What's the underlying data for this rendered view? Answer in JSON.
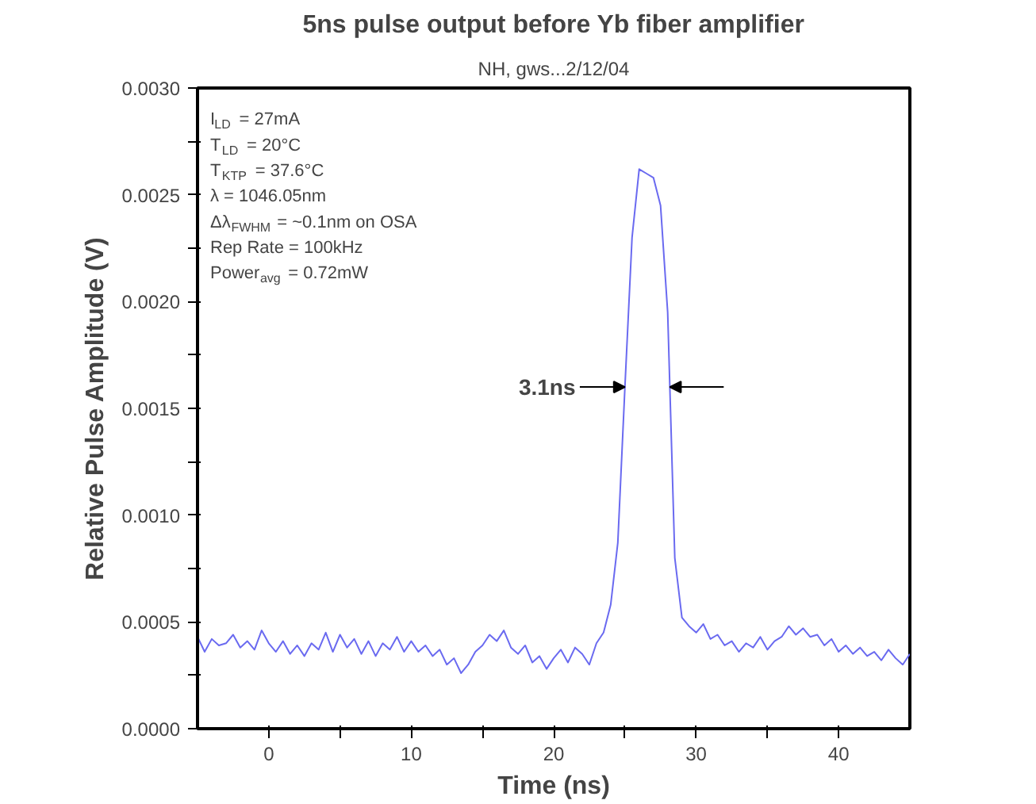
{
  "chart_data": {
    "type": "line",
    "title": "5ns pulse output before Yb fiber amplifier",
    "subtitle": "NH, gws...2/12/04",
    "xlabel": "Time (ns)",
    "ylabel": "Relative Pulse Amplitude (V)",
    "x": [
      -5,
      -4.5,
      -4,
      -3.5,
      -3,
      -2.5,
      -2,
      -1.5,
      -1,
      -0.5,
      0,
      0.5,
      1,
      1.5,
      2,
      2.5,
      3,
      3.5,
      4,
      4.5,
      5,
      5.5,
      6,
      6.5,
      7,
      7.5,
      8,
      8.5,
      9,
      9.5,
      10,
      10.5,
      11,
      11.5,
      12,
      12.5,
      13,
      13.5,
      14,
      14.5,
      15,
      15.5,
      16,
      16.5,
      17,
      17.5,
      18,
      18.5,
      19,
      19.5,
      20,
      20.5,
      21,
      21.5,
      22,
      22.5,
      23,
      23.5,
      24,
      24.5,
      25,
      25.5,
      26,
      26.5,
      27,
      27.5,
      28,
      28.5,
      29,
      29.5,
      30,
      30.5,
      31,
      31.5,
      32,
      32.5,
      33,
      33.5,
      34,
      34.5,
      35,
      35.5,
      36,
      36.5,
      37,
      37.5,
      38,
      38.5,
      39,
      39.5,
      40,
      40.5,
      41,
      41.5,
      42,
      42.5,
      43,
      43.5,
      44,
      44.5,
      45
    ],
    "series": [
      {
        "color": "#6a6af0",
        "values": [
          0.00043,
          0.00036,
          0.00042,
          0.00039,
          0.0004,
          0.00044,
          0.00038,
          0.00041,
          0.00037,
          0.00046,
          0.0004,
          0.00036,
          0.00041,
          0.00035,
          0.00039,
          0.00034,
          0.0004,
          0.00037,
          0.00045,
          0.00036,
          0.00044,
          0.00038,
          0.00042,
          0.00035,
          0.00041,
          0.00034,
          0.0004,
          0.00037,
          0.00043,
          0.00036,
          0.00041,
          0.00036,
          0.00039,
          0.00034,
          0.00037,
          0.0003,
          0.00033,
          0.00026,
          0.0003,
          0.00036,
          0.00039,
          0.00044,
          0.00041,
          0.00046,
          0.00038,
          0.00035,
          0.00039,
          0.00031,
          0.00034,
          0.00028,
          0.00033,
          0.00037,
          0.00031,
          0.00038,
          0.00035,
          0.0003,
          0.0004,
          0.00045,
          0.00058,
          0.00087,
          0.0016,
          0.0023,
          0.00262,
          0.0026,
          0.00258,
          0.00245,
          0.00195,
          0.0008,
          0.00052,
          0.00048,
          0.00045,
          0.00049,
          0.00042,
          0.00044,
          0.00039,
          0.00041,
          0.00036,
          0.0004,
          0.00038,
          0.00043,
          0.00037,
          0.00041,
          0.00043,
          0.00048,
          0.00044,
          0.00047,
          0.00043,
          0.00044,
          0.00039,
          0.00042,
          0.00036,
          0.00039,
          0.00035,
          0.00038,
          0.00034,
          0.00036,
          0.00032,
          0.00037,
          0.00033,
          0.0003,
          0.00035
        ]
      }
    ],
    "xlim": [
      -5,
      45
    ],
    "ylim": [
      0,
      0.003
    ],
    "xticks": [
      0,
      {
        "value": 5,
        "label": null
      },
      10,
      {
        "value": 15,
        "label": null
      },
      20,
      {
        "value": 25,
        "label": null
      },
      30,
      {
        "value": 35,
        "label": null
      },
      40
    ],
    "yticks": [
      {
        "value": 0,
        "label": "0.0000"
      },
      {
        "value": 0.00025,
        "label": null
      },
      {
        "value": 0.0005,
        "label": "0.0005"
      },
      {
        "value": 0.00075,
        "label": null
      },
      {
        "value": 0.001,
        "label": "0.0010"
      },
      {
        "value": 0.00125,
        "label": null
      },
      {
        "value": 0.0015,
        "label": "0.0015"
      },
      {
        "value": 0.00175,
        "label": null
      },
      {
        "value": 0.002,
        "label": "0.0020"
      },
      {
        "value": 0.00225,
        "label": null
      },
      {
        "value": 0.0025,
        "label": "0.0025"
      },
      {
        "value": 0.00275,
        "label": null
      },
      {
        "value": 0.003,
        "label": "0.0030"
      }
    ],
    "grid": false,
    "marker": "none",
    "line_style": "solid",
    "annotations": [
      {
        "text": "3.1ns",
        "x": 25.0,
        "y": 0.0016
      },
      "I$_{LD}$ = 27mA",
      "T$_{LD}$ = 20°C",
      "T$_{KTP}$ = 37.6°C",
      "λ = 1046.05nm",
      "Δλ$_{FWHM}$ = ~0.1nm on OSA",
      "Rep Rate = 100kHz",
      "Power$_{avg}$ = 0.72mW"
    ]
  }
}
